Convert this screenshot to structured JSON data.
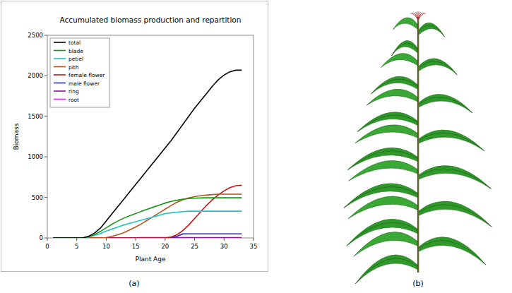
{
  "chart_data": {
    "type": "line",
    "title": "Accumulated biomass production and repartition",
    "x_label": "Plant Age",
    "y_label": "Biomass",
    "x": [
      1,
      2,
      3,
      4,
      5,
      6,
      7,
      8,
      9,
      10,
      11,
      12,
      13,
      14,
      15,
      16,
      17,
      18,
      19,
      20,
      21,
      22,
      23,
      24,
      25,
      26,
      27,
      28,
      29,
      30,
      31,
      32,
      33
    ],
    "xlim": [
      0,
      35
    ],
    "xticks": [
      0,
      5,
      10,
      15,
      20,
      25,
      30,
      35
    ],
    "ylim": [
      0,
      2500
    ],
    "yticks": [
      0,
      500,
      1000,
      1500,
      2000,
      2500
    ],
    "legend": "upper left",
    "series": [
      {
        "name": "total",
        "color": "#000000",
        "values": [
          0,
          0,
          0,
          0,
          0,
          0,
          20,
          60,
          120,
          210,
          300,
          390,
          480,
          570,
          660,
          750,
          840,
          930,
          1020,
          1110,
          1200,
          1300,
          1400,
          1500,
          1600,
          1690,
          1780,
          1870,
          1950,
          2010,
          2050,
          2070,
          2070
        ]
      },
      {
        "name": "blade",
        "color": "#1a961a",
        "values": [
          0,
          0,
          0,
          0,
          0,
          0,
          15,
          40,
          80,
          125,
          170,
          210,
          245,
          275,
          300,
          330,
          355,
          380,
          405,
          430,
          450,
          465,
          478,
          485,
          490,
          493,
          495,
          495,
          495,
          495,
          495,
          495,
          495
        ]
      },
      {
        "name": "petiel",
        "color": "#22c4c4",
        "values": [
          0,
          0,
          0,
          0,
          0,
          0,
          10,
          30,
          55,
          85,
          110,
          135,
          160,
          180,
          200,
          220,
          240,
          260,
          280,
          300,
          310,
          318,
          325,
          330,
          330,
          330,
          330,
          330,
          330,
          330,
          330,
          330,
          330
        ]
      },
      {
        "name": "pith",
        "color": "#b5561e",
        "values": [
          0,
          0,
          0,
          0,
          0,
          0,
          0,
          0,
          0,
          5,
          20,
          40,
          65,
          100,
          135,
          175,
          220,
          265,
          310,
          355,
          400,
          440,
          470,
          495,
          510,
          520,
          528,
          535,
          540,
          540,
          540,
          540,
          540
        ]
      },
      {
        "name": "female flower",
        "color": "#c81414",
        "values": [
          0,
          0,
          0,
          0,
          0,
          0,
          0,
          0,
          0,
          0,
          0,
          0,
          0,
          0,
          0,
          0,
          0,
          0,
          0,
          0,
          10,
          40,
          90,
          160,
          240,
          320,
          400,
          470,
          530,
          580,
          620,
          645,
          650
        ]
      },
      {
        "name": "male flower",
        "color": "#1e1ee6",
        "values": [
          0,
          0,
          0,
          0,
          0,
          0,
          0,
          0,
          0,
          0,
          0,
          0,
          0,
          0,
          0,
          0,
          0,
          0,
          0,
          0,
          0,
          20,
          50,
          50,
          50,
          50,
          50,
          50,
          50,
          50,
          50,
          50,
          50
        ]
      },
      {
        "name": "ring",
        "color": "#8a1a8a",
        "values": [
          0,
          0,
          0,
          0,
          0,
          0,
          0,
          0,
          0,
          0,
          1,
          1,
          2,
          2,
          2,
          3,
          3,
          3,
          3,
          4,
          4,
          4,
          4,
          5,
          5,
          5,
          5,
          5,
          5,
          5,
          5,
          5,
          5
        ]
      },
      {
        "name": "root",
        "color": "#e22ee2",
        "values": [
          0,
          0,
          0,
          0,
          0,
          0,
          0,
          0,
          0,
          0,
          0,
          0,
          0,
          0,
          0,
          0,
          0,
          0,
          0,
          0,
          0,
          0,
          0,
          0,
          0,
          0,
          0,
          0,
          0,
          0,
          0,
          0,
          0
        ]
      }
    ]
  },
  "panel_labels": [
    "(a)",
    "(b)"
  ]
}
